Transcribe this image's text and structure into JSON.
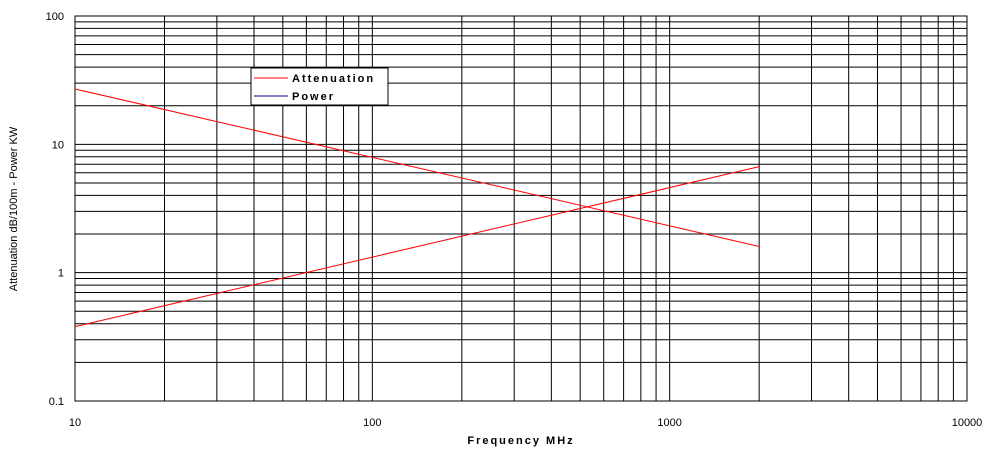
{
  "chart_data": {
    "type": "line",
    "title": "",
    "xlabel": "Frequency MHz",
    "ylabel": "Attenuation dB/100m - Power KW",
    "xscale": "log",
    "yscale": "log",
    "xlim": [
      10,
      10000
    ],
    "ylim": [
      0.1,
      100
    ],
    "grid": true,
    "x_ticks": [
      "10",
      "100",
      "1000",
      "10000"
    ],
    "y_ticks": [
      "0.1",
      "1",
      "10",
      "100"
    ],
    "legend": {
      "placement": "upper-left",
      "entries": [
        "Attenuation",
        "Power"
      ]
    },
    "series": [
      {
        "name": "Attenuation",
        "color": "#ff0000",
        "x": [
          10,
          2000
        ],
        "y": [
          27,
          1.6
        ]
      },
      {
        "name": "Power",
        "color": "#ff0000",
        "legend_color": "#000080",
        "x": [
          10,
          2000
        ],
        "y": [
          0.38,
          6.7
        ]
      }
    ]
  }
}
